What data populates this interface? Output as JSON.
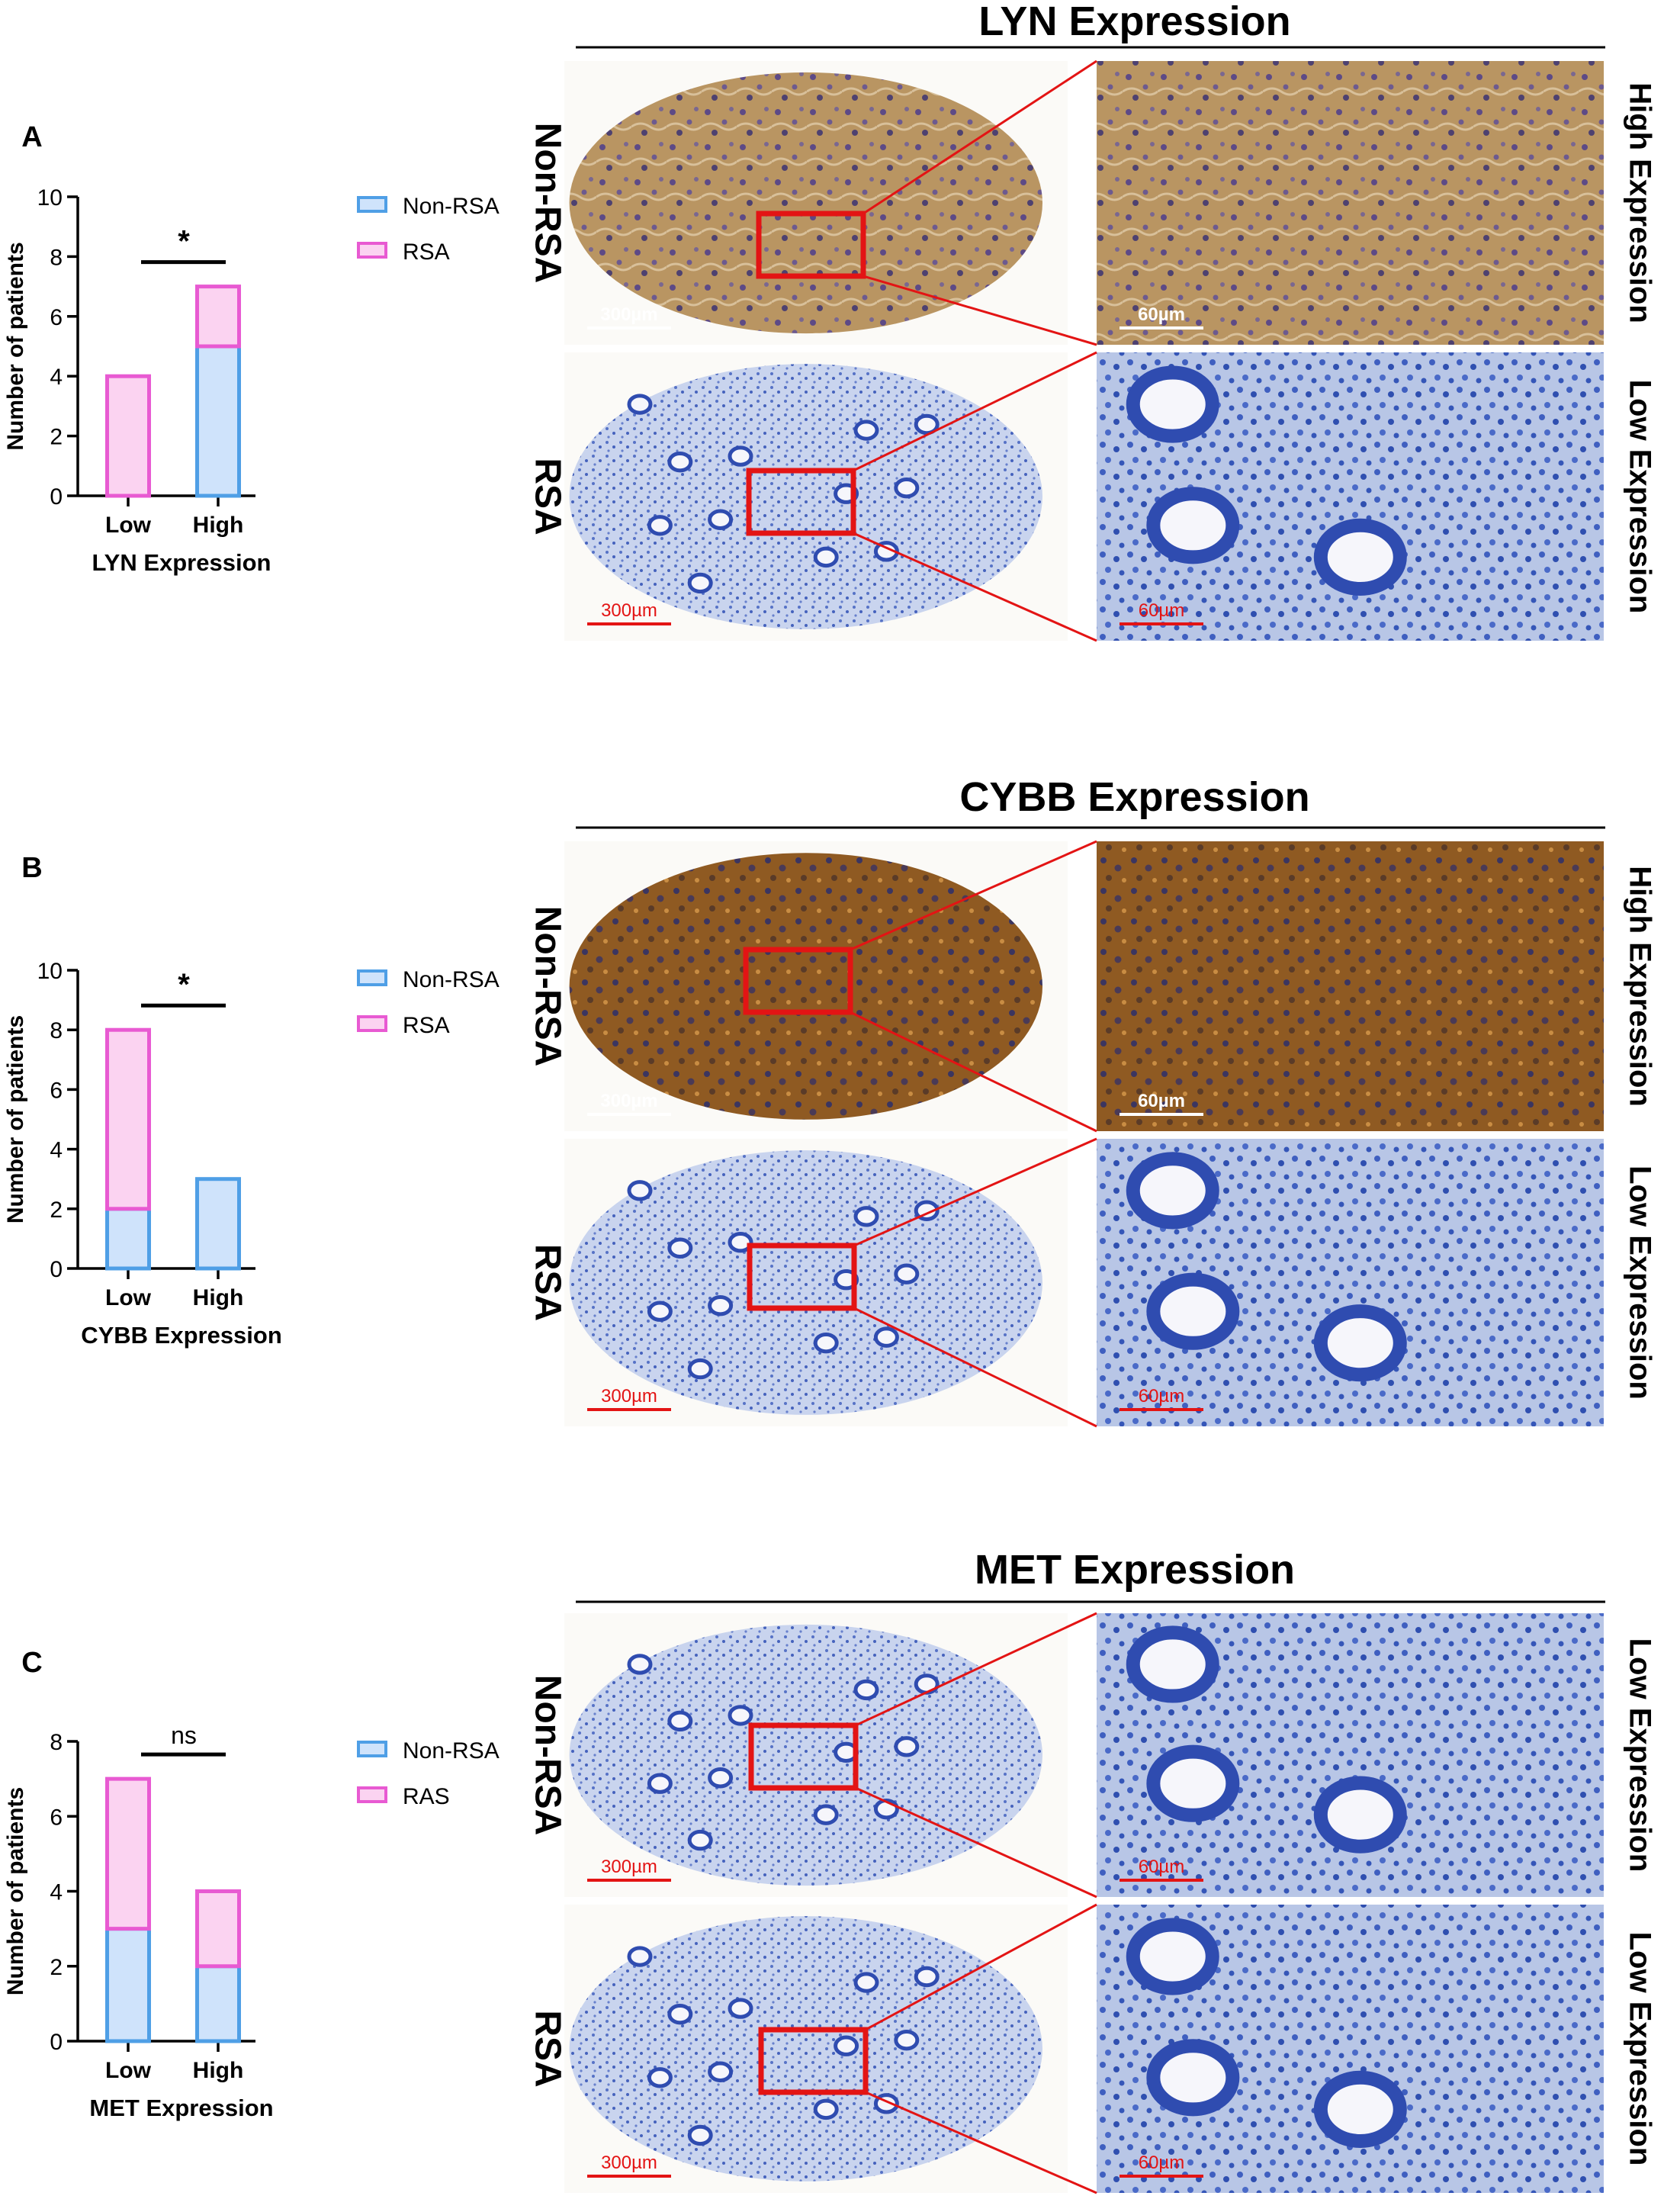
{
  "colors": {
    "non_rsa_fill": "#cfe3fb",
    "non_rsa_stroke": "#4f9fe6",
    "rsa_fill": "#fbd3f1",
    "rsa_stroke": "#e85ad2",
    "zoom_box": "#e31414"
  },
  "panels": [
    {
      "letter": "A",
      "panel_title": "LYN Expression",
      "non_rsa_row_label": "Non-RSA",
      "rsa_row_label": "RSA",
      "top_right_label": "High Expression",
      "bottom_right_label": "Low Expression",
      "scale_top_left": "300µm",
      "scale_top_right": "60µm",
      "scale_bottom_left": "300µm",
      "scale_bottom_right": "60µm",
      "tissue_top": "brown",
      "tissue_bottom": "blue"
    },
    {
      "letter": "B",
      "panel_title": "CYBB Expression",
      "non_rsa_row_label": "Non-RSA",
      "rsa_row_label": "RSA",
      "top_right_label": "High Expression",
      "bottom_right_label": "Low Expression",
      "scale_top_left": "300µm",
      "scale_top_right": "60µm",
      "scale_bottom_left": "300µm",
      "scale_bottom_right": "60µm",
      "tissue_top": "darkbrown",
      "tissue_bottom": "blue"
    },
    {
      "letter": "C",
      "panel_title": "MET Expression",
      "non_rsa_row_label": "Non-RSA",
      "rsa_row_label": "RSA",
      "top_right_label": "Low Expression",
      "bottom_right_label": "Low Expression",
      "scale_top_left": "300µm",
      "scale_top_right": "60µm",
      "scale_bottom_left": "300µm",
      "scale_bottom_right": "60µm",
      "tissue_top": "blue",
      "tissue_bottom": "blue"
    }
  ],
  "chart_data": [
    {
      "type": "bar",
      "stacked": true,
      "categories": [
        "Low",
        "High"
      ],
      "series": [
        {
          "name": "Non-RSA",
          "values": [
            0,
            5
          ]
        },
        {
          "name": "RSA",
          "values": [
            4,
            2
          ]
        }
      ],
      "xlabel": "LYN Expression",
      "ylabel": "Number of patients",
      "ylim": [
        0,
        10
      ],
      "yticks": [
        0,
        2,
        4,
        6,
        8,
        10
      ],
      "significance": "*",
      "legend_position": "right"
    },
    {
      "type": "bar",
      "stacked": true,
      "categories": [
        "Low",
        "High"
      ],
      "series": [
        {
          "name": "Non-RSA",
          "values": [
            2,
            3
          ]
        },
        {
          "name": "RSA",
          "values": [
            6,
            0
          ]
        }
      ],
      "xlabel": "CYBB Expression",
      "ylabel": "Number of patients",
      "ylim": [
        0,
        10
      ],
      "yticks": [
        0,
        2,
        4,
        6,
        8,
        10
      ],
      "significance": "*",
      "legend_position": "right"
    },
    {
      "type": "bar",
      "stacked": true,
      "categories": [
        "Low",
        "High"
      ],
      "series": [
        {
          "name": "Non-RSA",
          "values": [
            3,
            2
          ]
        },
        {
          "name": "RAS",
          "values": [
            4,
            2
          ]
        }
      ],
      "xlabel": "MET Expression",
      "ylabel": "Number of patients",
      "ylim": [
        0,
        8
      ],
      "yticks": [
        0,
        2,
        4,
        6,
        8
      ],
      "significance": "ns",
      "legend_position": "right"
    }
  ]
}
